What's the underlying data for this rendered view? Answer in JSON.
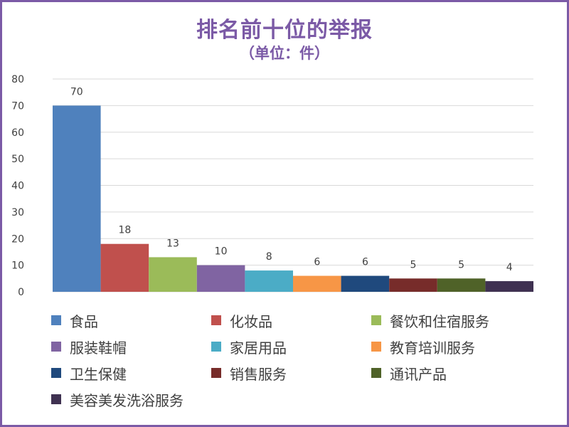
{
  "chart_data": {
    "type": "bar",
    "title": "排名前十位的举报",
    "subtitle": "（单位：件）",
    "categories": [
      "食品",
      "化妆品",
      "餐饮和住宿服务",
      "服装鞋帽",
      "家居用品",
      "教育培训服务",
      "卫生保健",
      "销售服务",
      "通讯产品",
      "美容美发洗浴服务"
    ],
    "values": [
      70,
      18,
      13,
      10,
      8,
      6,
      6,
      5,
      5,
      4
    ],
    "colors": [
      "#4f81bd",
      "#c0504d",
      "#9bbb59",
      "#8064a2",
      "#4bacc6",
      "#f79646",
      "#1f497d",
      "#772c2a",
      "#4f6228",
      "#3f3151"
    ],
    "ylim": [
      0,
      80
    ],
    "yticks": [
      0,
      10,
      20,
      30,
      40,
      50,
      60,
      70,
      80
    ],
    "grid": true,
    "legend_position": "bottom",
    "frame_color": "#7b5aa6"
  }
}
